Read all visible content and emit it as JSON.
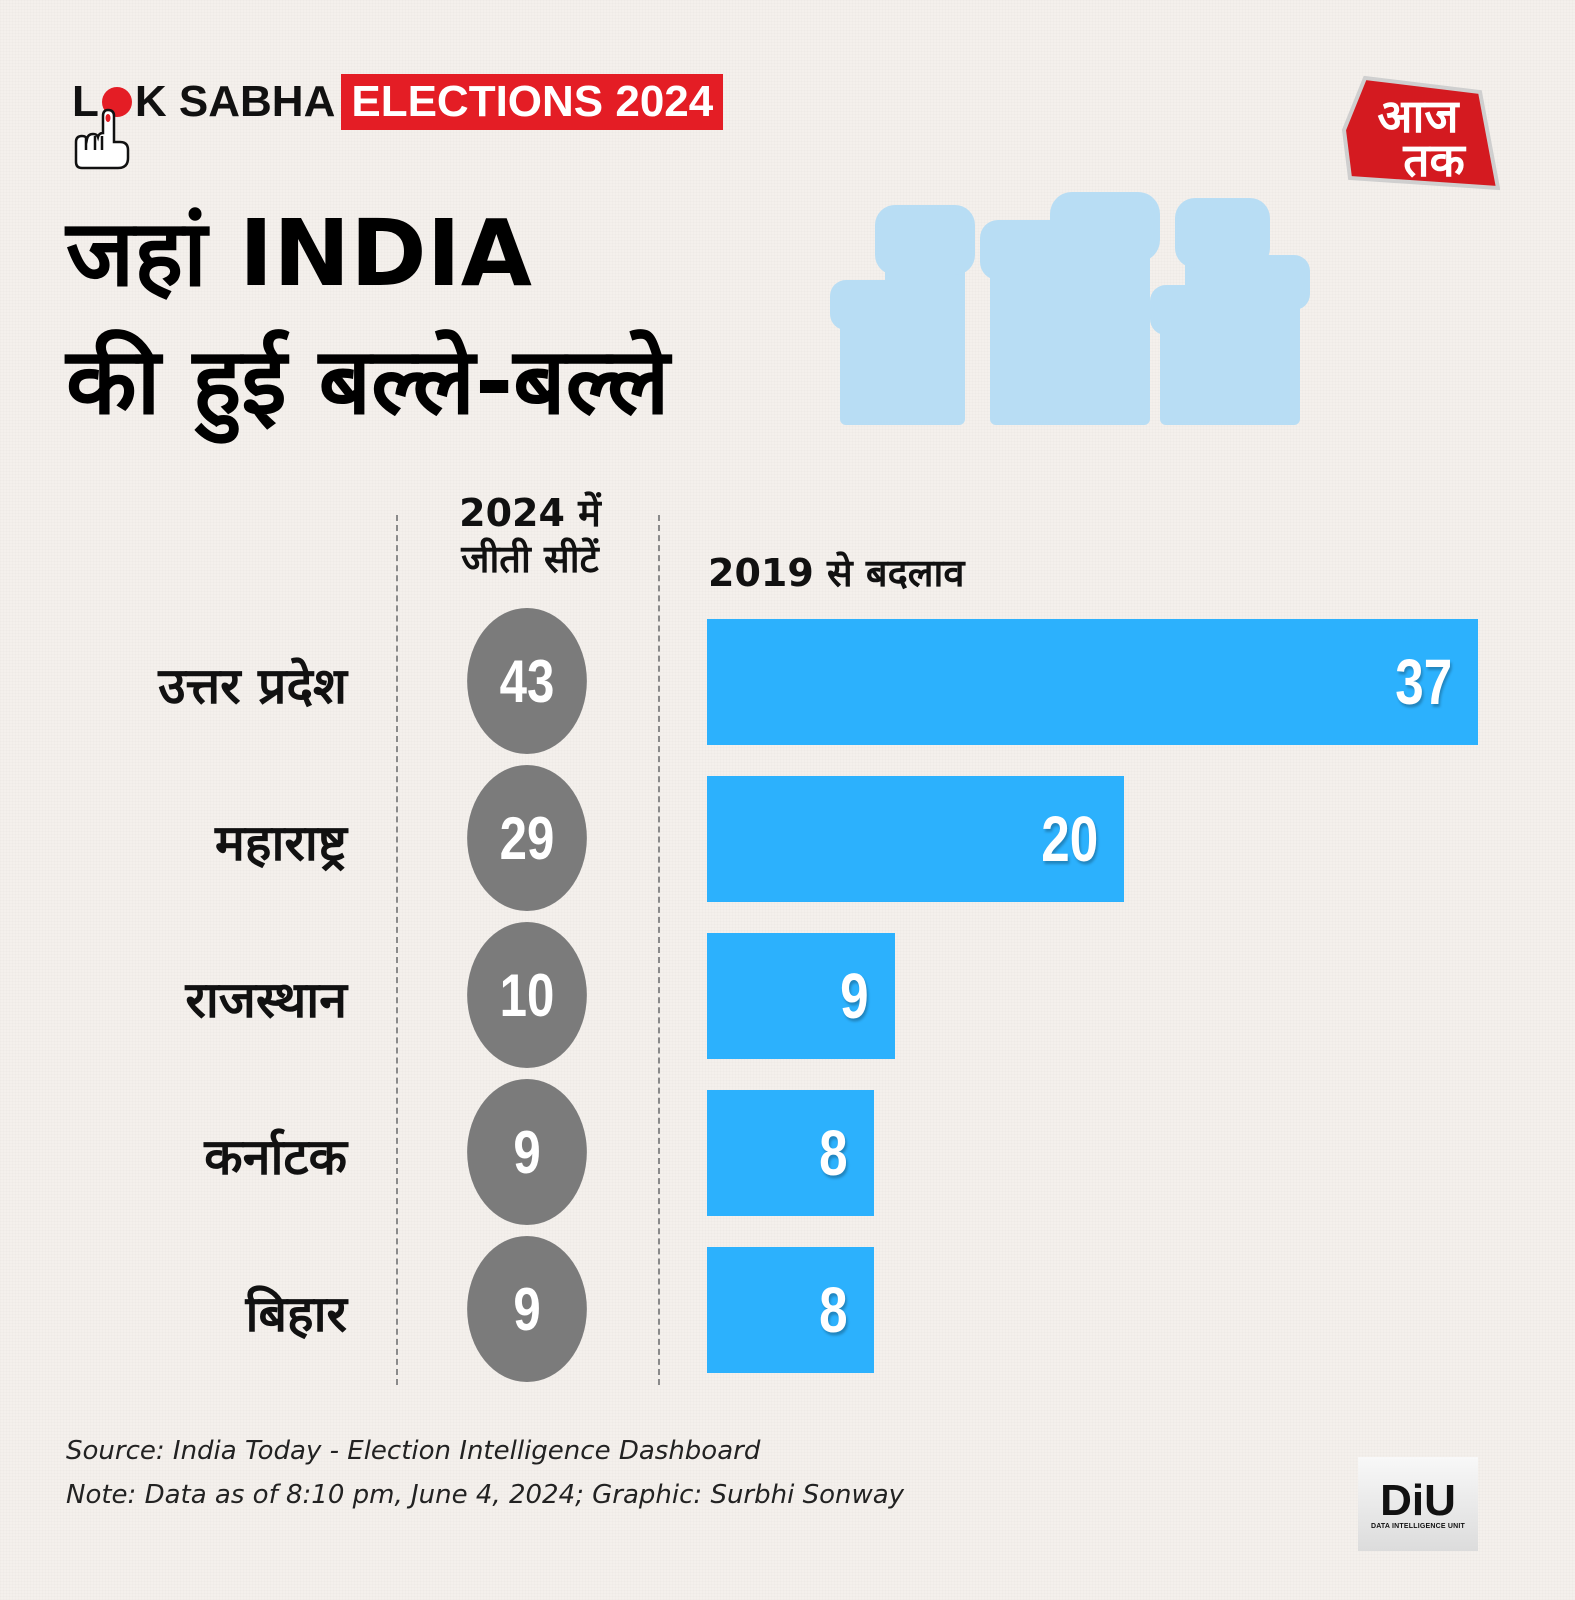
{
  "header": {
    "brand_lok_l": "L",
    "brand_lok_rest": "K SABHA",
    "brand_elections": "ELECTIONS 2024",
    "logo_line1": "आज",
    "logo_line2": "तक",
    "title_line1": "जहां INDIA",
    "title_line2": "की हुई बल्ले-बल्ले"
  },
  "columns": {
    "seats_header": "2024 में जीती सीटें",
    "seats_header_line1": "2024 में",
    "seats_header_line2": "जीती सीटें",
    "change_header": "2019 से बदलाव"
  },
  "colors": {
    "bar": "#2cb1fd",
    "circle": "#7b7b7b",
    "brand_red": "#e41d25",
    "fists": "#b8ddf4"
  },
  "chart_data": {
    "type": "bar",
    "title": "जहां INDIA की हुई बल्ले-बल्ले",
    "categories": [
      "उत्तर प्रदेश",
      "महाराष्ट्र",
      "राजस्थान",
      "कर्नाटक",
      "बिहार"
    ],
    "series": [
      {
        "name": "2024 में जीती सीटें",
        "values": [
          43,
          29,
          10,
          9,
          9
        ],
        "display": "circle"
      },
      {
        "name": "2019 से बदलाव",
        "values": [
          37,
          20,
          9,
          8,
          8
        ],
        "display": "horizontal-bar"
      }
    ],
    "xlabel": "",
    "ylabel": "",
    "grid": false,
    "orientation": "horizontal"
  },
  "footer": {
    "source": "Source: India Today - Election Intelligence Dashboard",
    "note": "Note: Data as of 8:10 pm, June 4, 2024; Graphic: Surbhi Sonway",
    "diu_logo": "DiU",
    "diu_sub": "DATA INTELLIGENCE UNIT"
  }
}
